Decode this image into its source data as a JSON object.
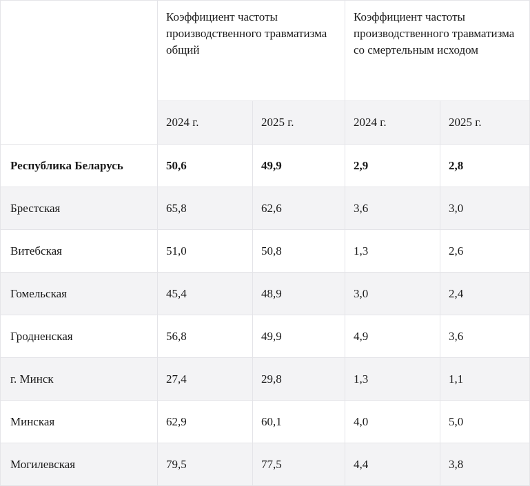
{
  "table": {
    "group_headers": [
      "Коэффициент частоты производственного травматизма общий",
      "Коэффициент частоты производственного травматизма со смертельным исходом"
    ],
    "years": [
      "2024 г.",
      "2025 г.",
      "2024 г.",
      "2025 г."
    ],
    "rows": [
      {
        "region": "Республика Беларусь",
        "values": [
          "50,6",
          "49,9",
          "2,9",
          "2,8"
        ]
      },
      {
        "region": "Брестская",
        "values": [
          "65,8",
          "62,6",
          "3,6",
          "3,0"
        ]
      },
      {
        "region": "Витебская",
        "values": [
          "51,0",
          "50,8",
          "1,3",
          "2,6"
        ]
      },
      {
        "region": "Гомельская",
        "values": [
          "45,4",
          "48,9",
          "3,0",
          "2,4"
        ]
      },
      {
        "region": "Гродненская",
        "values": [
          "56,8",
          "49,9",
          "4,9",
          "3,6"
        ]
      },
      {
        "region": "г. Минск",
        "values": [
          "27,4",
          "29,8",
          "1,3",
          "1,1"
        ]
      },
      {
        "region": "Минская",
        "values": [
          "62,9",
          "60,1",
          "4,0",
          "5,0"
        ]
      },
      {
        "region": "Могилевская",
        "values": [
          "79,5",
          "77,5",
          "4,4",
          "3,8"
        ]
      }
    ]
  }
}
